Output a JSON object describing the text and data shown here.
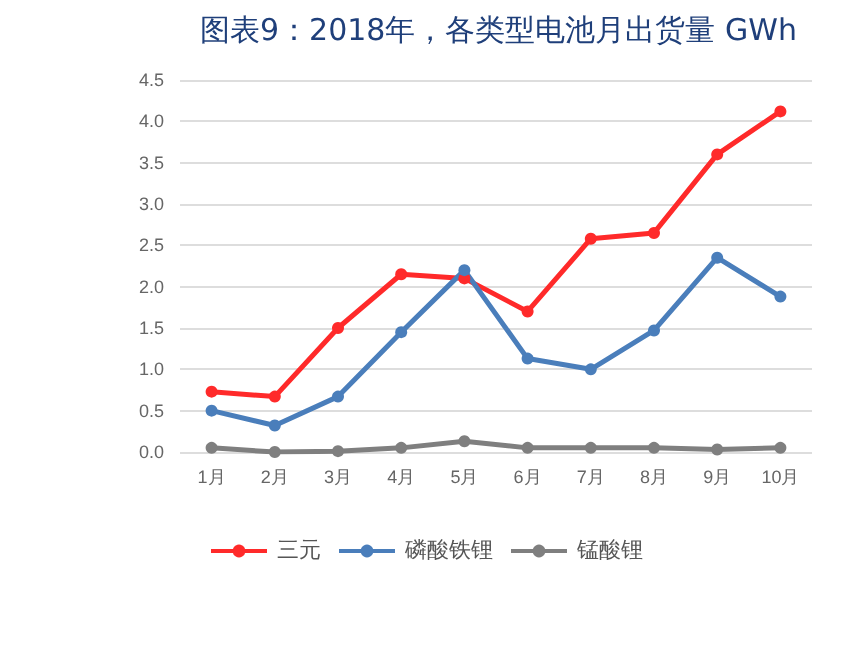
{
  "chart_data": {
    "type": "line",
    "title": "图表9：2018年，各类型电池月出货量 GWh",
    "categories": [
      "1月",
      "2月",
      "3月",
      "4月",
      "5月",
      "6月",
      "7月",
      "8月",
      "9月",
      "10月"
    ],
    "series": [
      {
        "name": "三元",
        "color": "#ff2a2a",
        "values": [
          0.73,
          0.67,
          1.5,
          2.15,
          2.1,
          1.7,
          2.58,
          2.65,
          3.6,
          4.12
        ]
      },
      {
        "name": "磷酸铁锂",
        "color": "#4a7ebb",
        "values": [
          0.5,
          0.32,
          0.67,
          1.45,
          2.2,
          1.13,
          1.0,
          1.47,
          2.35,
          1.88
        ]
      },
      {
        "name": "锰酸锂",
        "color": "#7f7f7f",
        "values": [
          0.05,
          0.0,
          0.01,
          0.05,
          0.13,
          0.05,
          0.05,
          0.05,
          0.03,
          0.05
        ]
      }
    ],
    "ylim": [
      0,
      4.5
    ],
    "yticks": [
      {
        "value": 0,
        "label": "0.0"
      },
      0.5,
      {
        "value": 1,
        "label": "1.0"
      },
      1.5,
      {
        "value": 2,
        "label": "2.0"
      },
      2.5,
      {
        "value": 3,
        "label": "3.0"
      },
      3.5,
      {
        "value": 4,
        "label": "4.0"
      },
      4.5
    ],
    "grid": "y",
    "legend": "bottom",
    "marker": "circle",
    "line_style": "solid"
  }
}
